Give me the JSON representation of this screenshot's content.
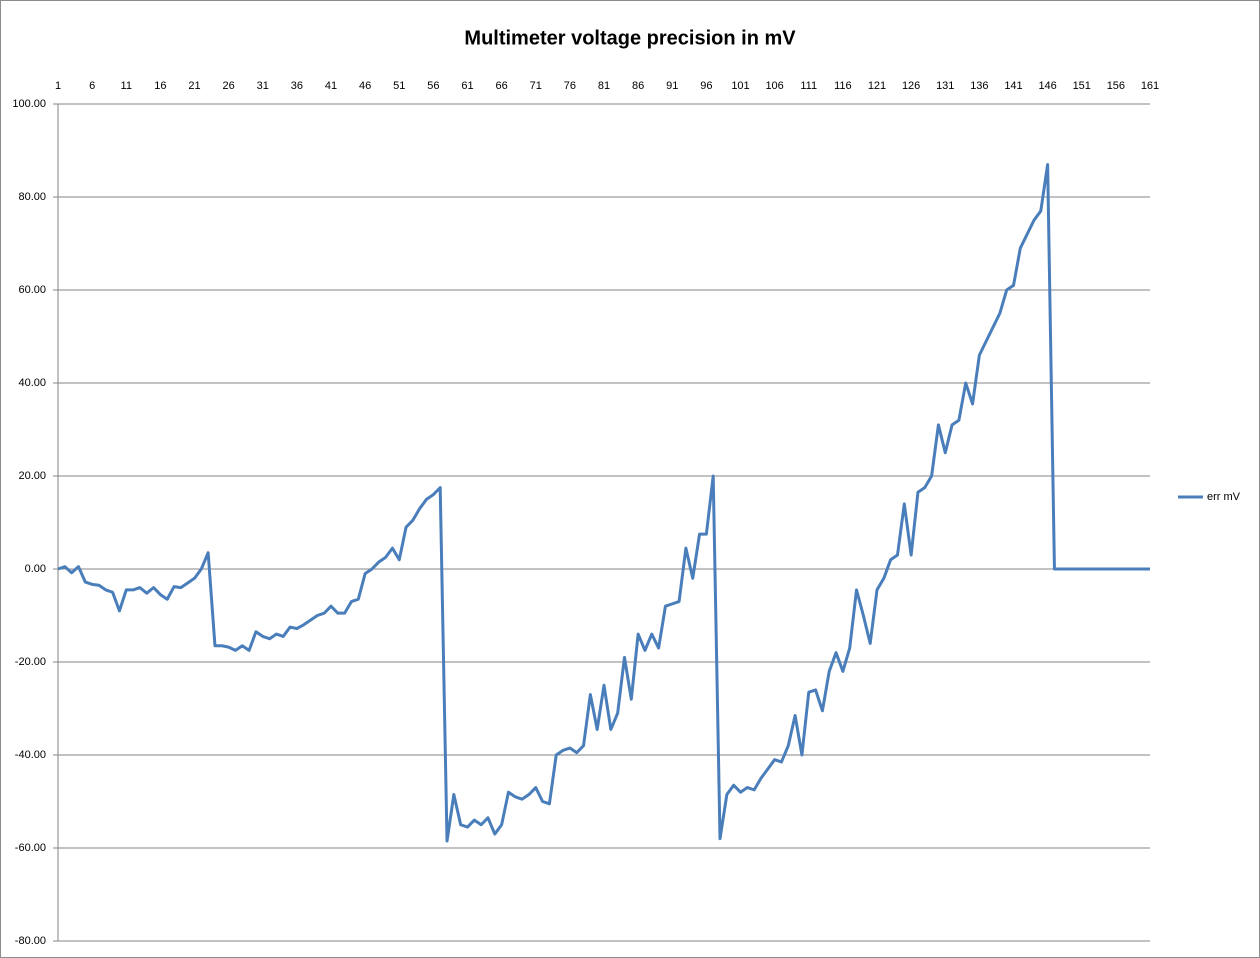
{
  "chart_data": {
    "type": "line",
    "title": "Multimeter voltage precision in mV",
    "categories": [
      1,
      null,
      null,
      null,
      null,
      6,
      null,
      null,
      null,
      null,
      11,
      null,
      null,
      null,
      null,
      16,
      null,
      null,
      null,
      null,
      21,
      null,
      null,
      null,
      null,
      26,
      null,
      null,
      null,
      null,
      31,
      null,
      null,
      null,
      null,
      36,
      null,
      null,
      null,
      null,
      41,
      null,
      null,
      null,
      null,
      46,
      null,
      null,
      null,
      null,
      51,
      null,
      null,
      null,
      null,
      56,
      null,
      null,
      null,
      null,
      61,
      null,
      null,
      null,
      null,
      66,
      null,
      null,
      null,
      null,
      71,
      null,
      null,
      null,
      null,
      76,
      null,
      null,
      null,
      null,
      81,
      null,
      null,
      null,
      null,
      86,
      null,
      null,
      null,
      null,
      91,
      null,
      null,
      null,
      null,
      96,
      null,
      null,
      null,
      null,
      101,
      null,
      null,
      null,
      null,
      106,
      null,
      null,
      null,
      null,
      111,
      null,
      null,
      null,
      null,
      116,
      null,
      null,
      null,
      null,
      121,
      null,
      null,
      null,
      null,
      126,
      null,
      null,
      null,
      null,
      131,
      null,
      null,
      null,
      null,
      136,
      null,
      null,
      null,
      null,
      141,
      null,
      null,
      null,
      null,
      146,
      null,
      null,
      null,
      null,
      151,
      null,
      null,
      null,
      null,
      156,
      null,
      null,
      null,
      null,
      161
    ],
    "series": [
      {
        "name": "err mV",
        "color": "#4a7ebb",
        "values": [
          0,
          0.5,
          -0.8,
          0.5,
          -2.8,
          -3.3,
          -3.5,
          -4.5,
          -5,
          -9,
          -4.5,
          -4.5,
          -4,
          -5.2,
          -4,
          -5.5,
          -6.5,
          -3.8,
          -4,
          -3,
          -2,
          0,
          3.5,
          -16.5,
          -16.5,
          -16.8,
          -17.5,
          -16.5,
          -17.5,
          -13.5,
          -14.5,
          -15,
          -14,
          -14.5,
          -12.5,
          -12.8,
          -12,
          -11,
          -10,
          -9.5,
          -8,
          -9.5,
          -9.5,
          -7,
          -6.5,
          -1,
          0,
          1.5,
          2.5,
          4.5,
          2,
          9,
          10.5,
          13,
          15,
          16,
          17.5,
          -58.5,
          -48.5,
          -55,
          -55.5,
          -54,
          -55,
          -53.5,
          -57,
          -55,
          -48,
          -49,
          -49.5,
          -48.5,
          -47,
          -50,
          -50.5,
          -40,
          -39,
          -38.5,
          -39.5,
          -38,
          -27,
          -34.5,
          -25,
          -34.5,
          -31,
          -19,
          -28,
          -14,
          -17.5,
          -14,
          -17,
          -8,
          -7.5,
          -7,
          4.5,
          -2,
          7.5,
          7.5,
          20,
          -58,
          -48.5,
          -46.5,
          -48,
          -47,
          -47.5,
          -45,
          -43,
          -41,
          -41.5,
          -38,
          -31.5,
          -40,
          -26.5,
          -26,
          -30.5,
          -22,
          -18,
          -22,
          -17,
          -4.5,
          -10,
          -16,
          -4.5,
          -2,
          2,
          3,
          14,
          3,
          16.5,
          17.5,
          20,
          31,
          25,
          31,
          32,
          40,
          35.5,
          46,
          49,
          52,
          55,
          60,
          61,
          69,
          72,
          75,
          77,
          87,
          0,
          0,
          0,
          0,
          0,
          0,
          0,
          0,
          0,
          0,
          0,
          0,
          0,
          0,
          0
        ]
      }
    ],
    "ylim": [
      -80,
      100
    ],
    "yticks": [
      {
        "value": -80,
        "label": "-80.00"
      },
      {
        "value": -60,
        "label": "-60.00"
      },
      {
        "value": -40,
        "label": "-40.00"
      },
      {
        "value": -20,
        "label": "-20.00"
      },
      {
        "value": 0,
        "label": "0.00"
      },
      {
        "value": 20,
        "label": "20.00"
      },
      {
        "value": 40,
        "label": "40.00"
      },
      {
        "value": 60,
        "label": "60.00"
      },
      {
        "value": 80,
        "label": "80.00"
      },
      {
        "value": 100,
        "label": "100.00"
      }
    ],
    "grid": true,
    "legend": "right"
  }
}
